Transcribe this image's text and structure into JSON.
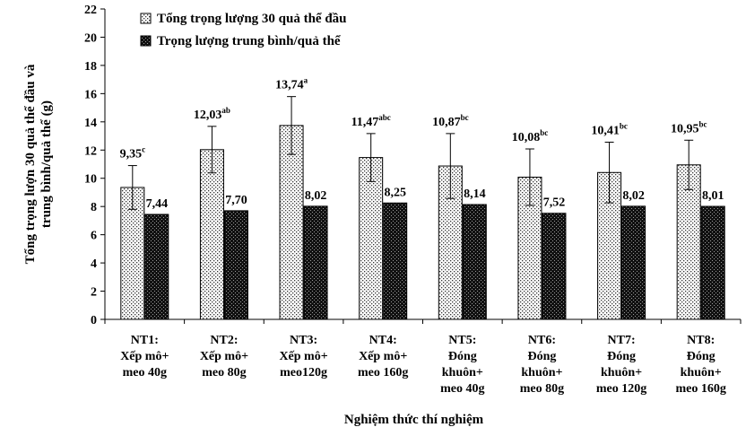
{
  "chart_data": {
    "type": "bar",
    "categories": [
      [
        "NT1:",
        "Xếp mô+",
        "meo 40g"
      ],
      [
        "NT2:",
        "Xếp mô+",
        "meo 80g"
      ],
      [
        "NT3:",
        "Xếp mô+",
        "meo120g"
      ],
      [
        "NT4:",
        "Xếp mô+",
        "meo 160g"
      ],
      [
        "NT5:",
        "Đóng",
        "khuôn+",
        "meo 40g"
      ],
      [
        "NT6:",
        "Đóng",
        "khuôn+",
        "meo 80g"
      ],
      [
        "NT7:",
        "Đóng",
        "khuôn+",
        "meo 120g"
      ],
      [
        "NT8:",
        "Đóng",
        "khuôn+",
        "meo 160g"
      ]
    ],
    "series": [
      {
        "name": "Tổng trọng lượng 30 quả thể đầu",
        "values": [
          9.35,
          12.03,
          13.74,
          11.47,
          10.87,
          10.08,
          10.41,
          10.95
        ],
        "errors": [
          1.55,
          1.65,
          2.05,
          1.7,
          2.3,
          2.0,
          2.15,
          1.75
        ],
        "labels": [
          "9,35",
          "12,03",
          "13,74",
          "11,47",
          "10,87",
          "10,08",
          "10,41",
          "10,95"
        ],
        "superscripts": [
          "c",
          "ab",
          "a",
          "abc",
          "bc",
          "bc",
          "bc",
          "bc"
        ],
        "pattern": "light-dotted"
      },
      {
        "name": "Trọng lượng trung bình/quả thể",
        "values": [
          7.44,
          7.7,
          8.02,
          8.25,
          8.14,
          7.52,
          8.02,
          8.01
        ],
        "labels": [
          "7,44",
          "7,70",
          "8,02",
          "8,25",
          "8,14",
          "7,52",
          "8,02",
          "8,01"
        ],
        "pattern": "dark-checker"
      }
    ],
    "xlabel": "Nghiệm thức thí nghiệm",
    "ylabel_lines": [
      "Tổng trọng lượn 30 quả thể đầu và",
      "trung bình/quả thể (g)"
    ],
    "ylim": [
      0,
      22
    ],
    "yticks": [
      0,
      2,
      4,
      6,
      8,
      10,
      12,
      14,
      16,
      18,
      20,
      22
    ],
    "grid": false,
    "legend_position": "top-left"
  }
}
